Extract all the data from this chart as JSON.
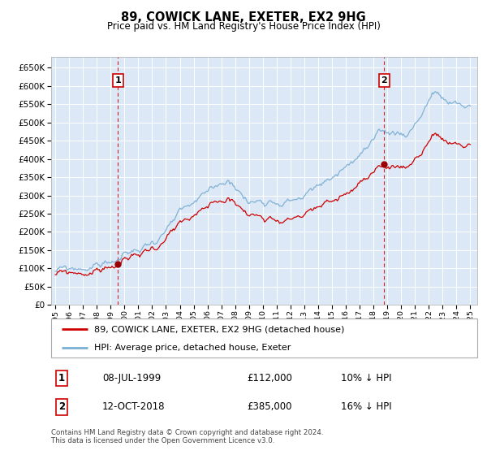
{
  "title": "89, COWICK LANE, EXETER, EX2 9HG",
  "subtitle": "Price paid vs. HM Land Registry's House Price Index (HPI)",
  "sale1_date": "08-JUL-1999",
  "sale1_price": 112000,
  "sale1_label": "1",
  "sale1_year": 1999.52,
  "sale2_date": "12-OCT-2018",
  "sale2_price": 385000,
  "sale2_label": "2",
  "sale2_year": 2018.78,
  "legend1": "89, COWICK LANE, EXETER, EX2 9HG (detached house)",
  "legend2": "HPI: Average price, detached house, Exeter",
  "hpi_color": "#7bafd4",
  "price_color": "#cc0000",
  "marker_color": "#990000",
  "vline_color": "#cc0000",
  "bg_color": "#dce8f5",
  "grid_color": "#ffffff",
  "ylim": [
    0,
    680000
  ],
  "yticks": [
    0,
    50000,
    100000,
    150000,
    200000,
    250000,
    300000,
    350000,
    400000,
    450000,
    500000,
    550000,
    600000,
    650000
  ],
  "footer_line1": "Contains HM Land Registry data © Crown copyright and database right 2024.",
  "footer_line2": "This data is licensed under the Open Government Licence v3.0."
}
